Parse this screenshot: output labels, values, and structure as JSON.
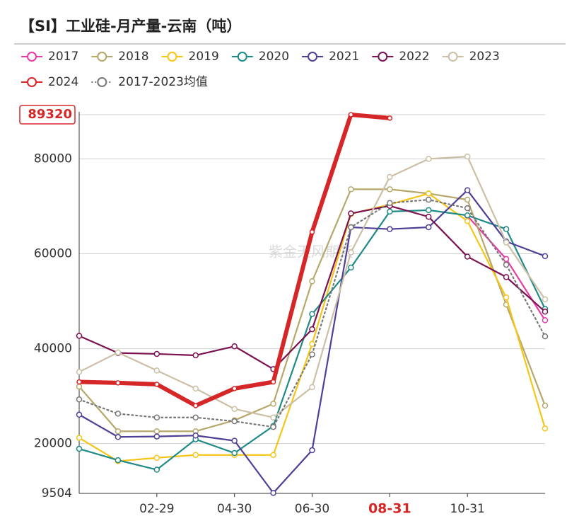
{
  "chart_data": {
    "type": "line",
    "title": "【SI】工业硅-月产量-云南（吨）",
    "watermark": "紫金天风期货",
    "categories": [
      null,
      null,
      "02-29",
      null,
      "04-30",
      null,
      "06-30",
      null,
      "08-31",
      null,
      "10-31",
      null,
      null
    ],
    "ylim": [
      9504,
      89320
    ],
    "yticks": [
      9504,
      20000,
      40000,
      60000,
      80000,
      89320
    ],
    "grid": true,
    "legend": "top",
    "series": [
      {
        "name": "2017",
        "color": "#e83aa8",
        "values": [
          null,
          null,
          null,
          null,
          null,
          null,
          null,
          null,
          null,
          null,
          68000,
          58900,
          46000
        ]
      },
      {
        "name": "2018",
        "color": "#b5a86a",
        "values": [
          32000,
          22600,
          22600,
          22600,
          24900,
          28400,
          54200,
          73600,
          73600,
          72700,
          71400,
          49300,
          28000
        ]
      },
      {
        "name": "2019",
        "color": "#f5c518",
        "values": [
          21200,
          16300,
          17000,
          17600,
          17600,
          17600,
          41000,
          68400,
          70400,
          72700,
          66900,
          50800,
          23200
        ]
      },
      {
        "name": "2020",
        "color": "#1f8a86",
        "values": [
          18900,
          16500,
          14500,
          20900,
          18000,
          23700,
          47300,
          57100,
          68900,
          69200,
          68100,
          65200,
          48400
        ]
      },
      {
        "name": "2021",
        "color": "#4f3f96",
        "values": [
          26100,
          21400,
          21500,
          21700,
          20600,
          9600,
          18600,
          65600,
          65200,
          65600,
          73400,
          62600,
          59500
        ]
      },
      {
        "name": "2022",
        "color": "#7b1150",
        "values": [
          42700,
          39100,
          38900,
          38600,
          40500,
          35700,
          44100,
          68500,
          70100,
          67800,
          59400,
          55100,
          47800
        ]
      },
      {
        "name": "2023",
        "color": "#cbbfa6",
        "values": [
          35100,
          39200,
          35400,
          31600,
          27300,
          25500,
          31900,
          60300,
          76200,
          80000,
          80500,
          62400,
          50400
        ]
      },
      {
        "name": "2024",
        "color": "#d62728",
        "values": [
          33000,
          32800,
          32500,
          28000,
          31600,
          33000,
          64600,
          89320,
          88600,
          null,
          null,
          null,
          null
        ]
      },
      {
        "name": "2017-2023均值",
        "color": "#777777",
        "dotted": true,
        "values": [
          29300,
          26300,
          25500,
          25500,
          24700,
          23500,
          38800,
          65600,
          70700,
          71400,
          69600,
          57700,
          42600
        ]
      }
    ]
  }
}
